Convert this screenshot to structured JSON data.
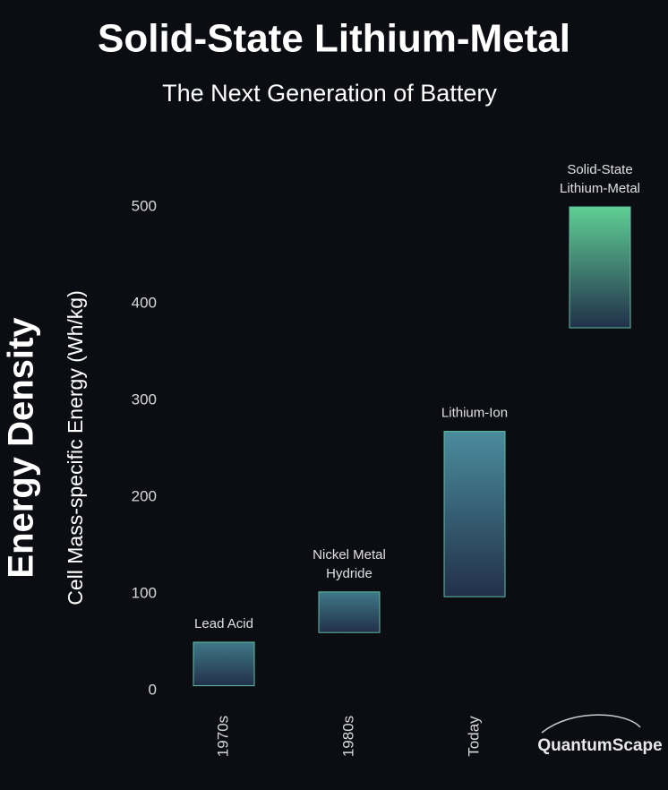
{
  "chart_data": {
    "type": "floating_bar",
    "title": "Solid-State Lithium-Metal",
    "subtitle": "The Next Generation of Battery",
    "y_title": "Energy Density",
    "y_label": "Cell Mass-specific Energy (Wh/kg)",
    "categories": [
      "1970s",
      "1980s",
      "Today",
      "QuantumScape"
    ],
    "bar_labels": [
      [
        "Lead Acid"
      ],
      [
        "Nickel Metal",
        "Hydride"
      ],
      [
        "Lithium-Ion"
      ],
      [
        "Solid-State",
        "Lithium-Metal"
      ]
    ],
    "low": [
      5,
      60,
      97,
      375
    ],
    "high": [
      50,
      102,
      268,
      500
    ],
    "colors": [
      "#3f7888",
      "#3f7888",
      "#4a8c9c",
      "#5fcf95"
    ],
    "ylim": [
      0,
      500
    ],
    "yticks": [
      0,
      100,
      200,
      300,
      400,
      500
    ]
  }
}
